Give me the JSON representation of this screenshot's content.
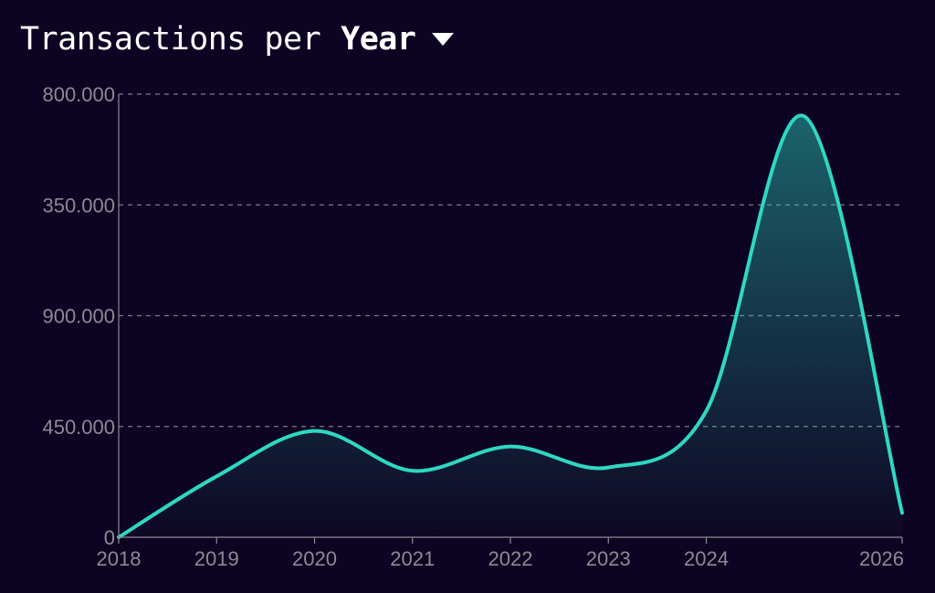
{
  "header": {
    "title_prefix": "Transactions per",
    "period_selected": "Year",
    "dropdown_icon": "caret-down-icon"
  },
  "colors": {
    "background": "#0d0322",
    "line": "#2ed8c3",
    "grid": "#8c8a96",
    "tick_text": "#8c8a96",
    "title_text": "#ffffff"
  },
  "chart_data": {
    "type": "area",
    "title": "Transactions per Year",
    "xlabel": "",
    "ylabel": "",
    "x_ticks": [
      {
        "value": 2018,
        "label": "2018"
      },
      {
        "value": 2019,
        "label": "2019"
      },
      {
        "value": 2020,
        "label": "2020"
      },
      {
        "value": 2021,
        "label": "2021"
      },
      {
        "value": 2022,
        "label": "2022"
      },
      {
        "value": 2023,
        "label": "2023"
      },
      {
        "value": 2024,
        "label": "2024"
      },
      {
        "value": 2026,
        "label": "2026"
      }
    ],
    "y_ticks": [
      {
        "level": 0,
        "label": "0"
      },
      {
        "level": 1,
        "label": "450.000"
      },
      {
        "level": 2,
        "label": "900.000"
      },
      {
        "level": 3,
        "label": "350.000"
      },
      {
        "level": 4,
        "label": "800.000"
      }
    ],
    "xlim": [
      2018,
      2026
    ],
    "ylim": [
      0,
      4
    ],
    "grid": true,
    "series": [
      {
        "name": "Transactions",
        "points": [
          {
            "x": 2018.0,
            "y": 0.0
          },
          {
            "x": 2019.0,
            "y": 0.55
          },
          {
            "x": 2020.0,
            "y": 0.96
          },
          {
            "x": 2021.0,
            "y": 0.6
          },
          {
            "x": 2022.0,
            "y": 0.82
          },
          {
            "x": 2023.0,
            "y": 0.63
          },
          {
            "x": 2024.0,
            "y": 1.14
          },
          {
            "x": 2025.0,
            "y": 3.8
          },
          {
            "x": 2026.0,
            "y": 0.22
          }
        ]
      }
    ]
  }
}
